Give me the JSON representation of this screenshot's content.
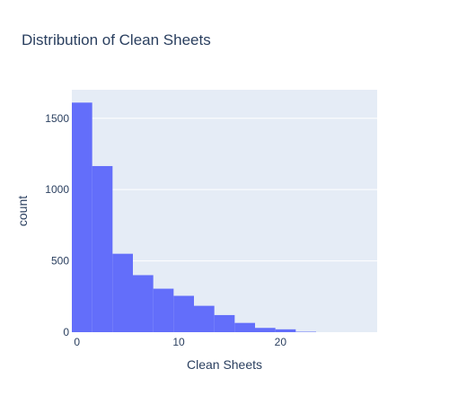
{
  "chart_data": {
    "type": "bar",
    "title": "Distribution of Clean Sheets",
    "xlabel": "Clean Sheets",
    "ylabel": "count",
    "bin_edges": [
      -0.5,
      1.5,
      3.5,
      5.5,
      7.5,
      9.5,
      11.5,
      13.5,
      15.5,
      17.5,
      19.5,
      21.5,
      23.5,
      25.5,
      27.5,
      29.5
    ],
    "values": [
      1610,
      1165,
      550,
      400,
      305,
      255,
      185,
      120,
      65,
      30,
      20,
      3,
      0,
      0,
      0
    ],
    "xlim": [
      -0.5,
      29.5
    ],
    "ylim": [
      0,
      1700
    ],
    "x_ticks": [
      0,
      10,
      20
    ],
    "y_ticks": [
      0,
      500,
      1000,
      1500
    ],
    "x_tick_labels": [
      "0",
      "10",
      "20"
    ],
    "y_tick_labels": [
      "0",
      "500",
      "1000",
      "1500"
    ],
    "grid": true,
    "colors": {
      "bar": "#636efa",
      "plot_bg": "#e5ecf6",
      "grid": "#ffffff",
      "text": "#2a3f5f"
    }
  }
}
